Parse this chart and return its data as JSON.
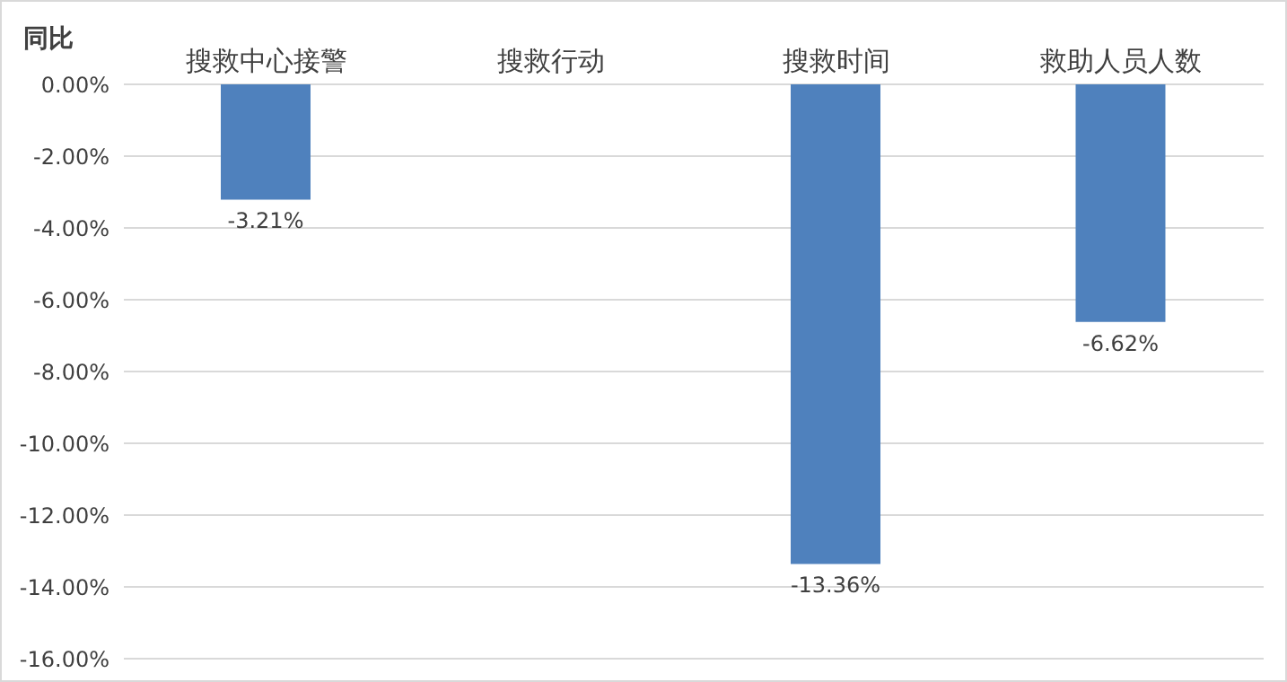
{
  "chart_data": {
    "type": "bar",
    "ylabel": "同比",
    "categories": [
      "搜救中心接警",
      "搜救行动",
      "搜救时间",
      "救助人员人数"
    ],
    "values": [
      -3.21,
      null,
      -13.36,
      -6.62
    ],
    "value_labels": [
      "-3.21%",
      null,
      "-13.36%",
      "-6.62%"
    ],
    "color": "#4f81bd",
    "ylim": [
      -16,
      0
    ],
    "yticks": [
      {
        "value": 0,
        "label": "0.00%"
      },
      {
        "value": -2,
        "label": "-2.00%"
      },
      {
        "value": -4,
        "label": "-4.00%"
      },
      {
        "value": -6,
        "label": "-6.00%"
      },
      {
        "value": -8,
        "label": "-8.00%"
      },
      {
        "value": -10,
        "label": "-10.00%"
      },
      {
        "value": -12,
        "label": "-12.00%"
      },
      {
        "value": -14,
        "label": "-14.00%"
      },
      {
        "value": -16,
        "label": "-16.00%"
      }
    ],
    "grid": "y",
    "legend": false
  }
}
